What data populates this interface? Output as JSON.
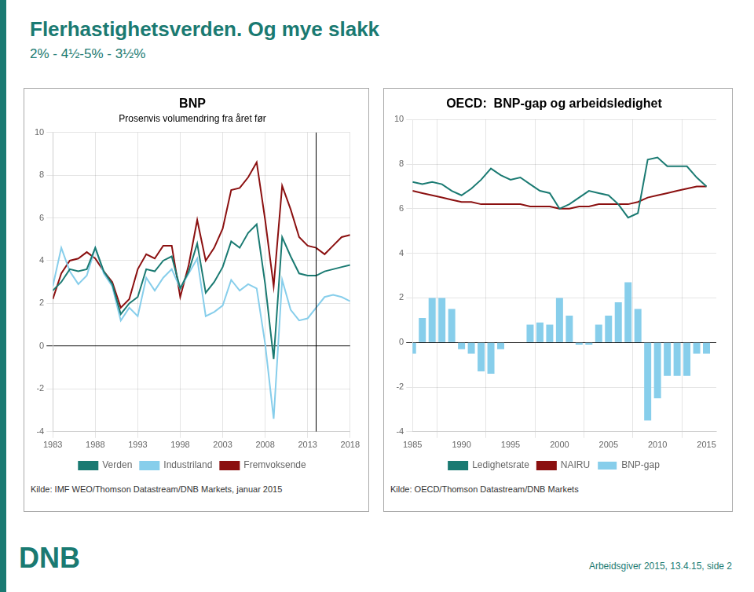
{
  "title": "Flerhastighetsverden. Og mye slakk",
  "subtitle": "2% - 4½-5% - 3½%",
  "annotations": [
    {
      "text": "DNB"
    },
    {
      "text": "Arbeidsgiver 2015, 13.4.15, side 2"
    }
  ],
  "chart_data": [
    {
      "type": "line",
      "title": "BNP",
      "subtitle": "Prosenvis volumendring fra året før",
      "x": [
        1983,
        1984,
        1985,
        1986,
        1987,
        1988,
        1989,
        1990,
        1991,
        1992,
        1993,
        1994,
        1995,
        1996,
        1997,
        1998,
        1999,
        2000,
        2001,
        2002,
        2003,
        2004,
        2005,
        2006,
        2007,
        2008,
        2009,
        2010,
        2011,
        2012,
        2013,
        2014,
        2015,
        2016,
        2017,
        2018
      ],
      "series": [
        {
          "name": "Verden",
          "color": "#1a7a72",
          "values": [
            2.6,
            3.0,
            3.6,
            3.5,
            3.6,
            4.6,
            3.5,
            2.9,
            1.5,
            2.0,
            2.3,
            3.6,
            3.5,
            4.0,
            4.2,
            2.7,
            3.5,
            4.8,
            2.5,
            3.0,
            3.7,
            4.9,
            4.6,
            5.3,
            5.7,
            2.9,
            -0.6,
            5.1,
            4.2,
            3.4,
            3.3,
            3.3,
            3.5,
            3.6,
            3.7,
            3.8
          ]
        },
        {
          "name": "Industriland",
          "color": "#87ceeb",
          "values": [
            2.8,
            4.6,
            3.5,
            2.9,
            3.3,
            4.6,
            3.4,
            2.8,
            1.2,
            1.8,
            1.4,
            3.2,
            2.6,
            3.2,
            3.6,
            2.7,
            3.4,
            4.1,
            1.4,
            1.6,
            1.9,
            3.1,
            2.6,
            2.9,
            2.7,
            0.1,
            -3.4,
            3.1,
            1.7,
            1.2,
            1.3,
            1.8,
            2.3,
            2.4,
            2.3,
            2.1
          ]
        },
        {
          "name": "Fremvoksende",
          "color": "#8b1010",
          "values": [
            2.2,
            3.4,
            4.0,
            4.1,
            4.4,
            4.1,
            3.5,
            3.0,
            1.8,
            2.2,
            3.6,
            4.3,
            4.1,
            4.7,
            4.7,
            2.3,
            3.8,
            5.9,
            4.0,
            4.6,
            5.5,
            7.3,
            7.4,
            7.9,
            8.6,
            5.9,
            2.8,
            7.5,
            6.4,
            5.1,
            4.7,
            4.6,
            4.3,
            4.7,
            5.1,
            5.2
          ]
        }
      ],
      "xlim": [
        1983,
        2018
      ],
      "xticks": [
        1983,
        1988,
        1993,
        1998,
        2003,
        2008,
        2013,
        2018
      ],
      "ylim": [
        -4,
        10
      ],
      "yticks": [
        -4,
        -2,
        0,
        2,
        4,
        6,
        8,
        10
      ],
      "grid": true,
      "legend": "bottom",
      "annotations": [
        {
          "type": "vline",
          "x": 2014
        },
        {
          "text": "Kilde: IMF WEO/Thomson Datastream/DNB Markets, januar 2015"
        }
      ]
    },
    {
      "type": "bar",
      "title": "OECD:  BNP-gap og arbeidsledighet",
      "x": [
        1985,
        1986,
        1987,
        1988,
        1989,
        1990,
        1991,
        1992,
        1993,
        1994,
        1995,
        1996,
        1997,
        1998,
        1999,
        2000,
        2001,
        2002,
        2003,
        2004,
        2005,
        2006,
        2007,
        2008,
        2009,
        2010,
        2011,
        2012,
        2013,
        2014,
        2015
      ],
      "series": [
        {
          "name": "BNP-gap",
          "type": "bar",
          "color": "#87ceeb",
          "values": [
            -0.5,
            1.1,
            2.0,
            2.0,
            1.5,
            -0.3,
            -0.5,
            -1.3,
            -1.4,
            -0.3,
            0.0,
            -0.0,
            0.8,
            0.9,
            0.8,
            2.0,
            1.2,
            -0.1,
            -0.1,
            0.8,
            1.2,
            1.8,
            2.7,
            1.5,
            -3.5,
            -2.5,
            -1.5,
            -1.5,
            -1.5,
            -0.5,
            -0.5
          ]
        },
        {
          "name": "Ledighetsrate",
          "type": "line",
          "color": "#1a7a72",
          "values": [
            7.2,
            7.1,
            7.2,
            7.1,
            6.8,
            6.6,
            6.9,
            7.3,
            7.8,
            7.5,
            7.3,
            7.4,
            7.1,
            6.8,
            6.7,
            6.0,
            6.2,
            6.5,
            6.8,
            6.7,
            6.6,
            6.2,
            5.6,
            5.8,
            8.2,
            8.3,
            7.9,
            7.9,
            7.9,
            7.4,
            7.0
          ]
        },
        {
          "name": "NAIRU",
          "type": "line",
          "color": "#8b1010",
          "values": [
            6.8,
            6.7,
            6.6,
            6.5,
            6.4,
            6.3,
            6.3,
            6.2,
            6.2,
            6.2,
            6.2,
            6.2,
            6.1,
            6.1,
            6.1,
            6.0,
            6.0,
            6.1,
            6.1,
            6.2,
            6.2,
            6.2,
            6.2,
            6.3,
            6.5,
            6.6,
            6.7,
            6.8,
            6.9,
            7.0,
            7.0
          ]
        }
      ],
      "xlim": [
        1985,
        2016
      ],
      "xticks": [
        1985,
        1990,
        1995,
        2000,
        2005,
        2010,
        2015
      ],
      "ylim": [
        -4,
        10
      ],
      "yticks": [
        -4,
        -2,
        0,
        2,
        4,
        6,
        8,
        10
      ],
      "grid": true,
      "legend": "bottom",
      "annotations": [
        {
          "text": "Kilde: OECD/Thomson  Datastream/DNB  Markets"
        }
      ]
    }
  ]
}
